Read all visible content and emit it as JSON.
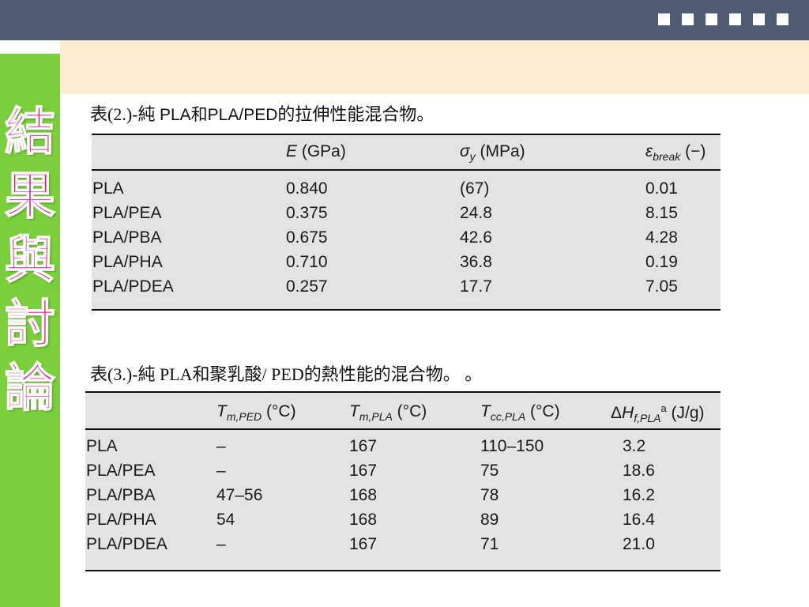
{
  "sidebar": {
    "title_chars": [
      "結",
      "果",
      "與",
      "討",
      "論"
    ]
  },
  "table2": {
    "caption_prefix": "表(2.)-純 ",
    "caption_sans": "PLA和PLA/PED",
    "caption_suffix": "的拉伸性能混合物。",
    "headers": {
      "e_symbol": "E",
      "e_unit": " (GPa)",
      "sigma_symbol": "σ",
      "sigma_sub": "y",
      "sigma_unit": " (MPa)",
      "eps_symbol": "ε",
      "eps_sub": "break",
      "eps_unit": " (−)"
    },
    "rows": [
      [
        "PLA",
        "0.840",
        "(67)",
        "0.01"
      ],
      [
        "PLA/PEA",
        "0.375",
        "24.8",
        "8.15"
      ],
      [
        "PLA/PBA",
        "0.675",
        "42.6",
        "4.28"
      ],
      [
        "PLA/PHA",
        "0.710",
        "36.8",
        "0.19"
      ],
      [
        "PLA/PDEA",
        "0.257",
        "17.7",
        "7.05"
      ]
    ]
  },
  "table3": {
    "caption": "表(3.)-純 PLA和聚乳酸/ PED的熱性能的混合物。 。",
    "headers": {
      "tm_ped_symbol": "T",
      "tm_ped_sub": "m,PED",
      "tm_ped_unit": " (°C)",
      "tm_pla_symbol": "T",
      "tm_pla_sub": "m,PLA",
      "tm_pla_unit": " (°C)",
      "tcc_symbol": "T",
      "tcc_sub": "cc,PLA",
      "tcc_unit": " (°C)",
      "dh_prefix": "Δ",
      "dh_symbol": "H",
      "dh_sub": "f,PLA",
      "dh_sup": "a",
      "dh_unit": " (J/g)"
    },
    "rows": [
      [
        "PLA",
        "–",
        "167",
        "110–150",
        "3.2"
      ],
      [
        "PLA/PEA",
        "–",
        "167",
        "75",
        "18.6"
      ],
      [
        "PLA/PBA",
        "47–56",
        "168",
        "78",
        "16.2"
      ],
      [
        "PLA/PHA",
        "54",
        "168",
        "89",
        "16.4"
      ],
      [
        "PLA/PDEA",
        "–",
        "167",
        "71",
        "21.0"
      ]
    ]
  },
  "colors": {
    "top_bar": "#4f5b70",
    "cream_band": "#fcecd0",
    "sidebar": "#7ccf3c",
    "title_text": "#e5137e",
    "table_bg": "#e3e3e3"
  }
}
